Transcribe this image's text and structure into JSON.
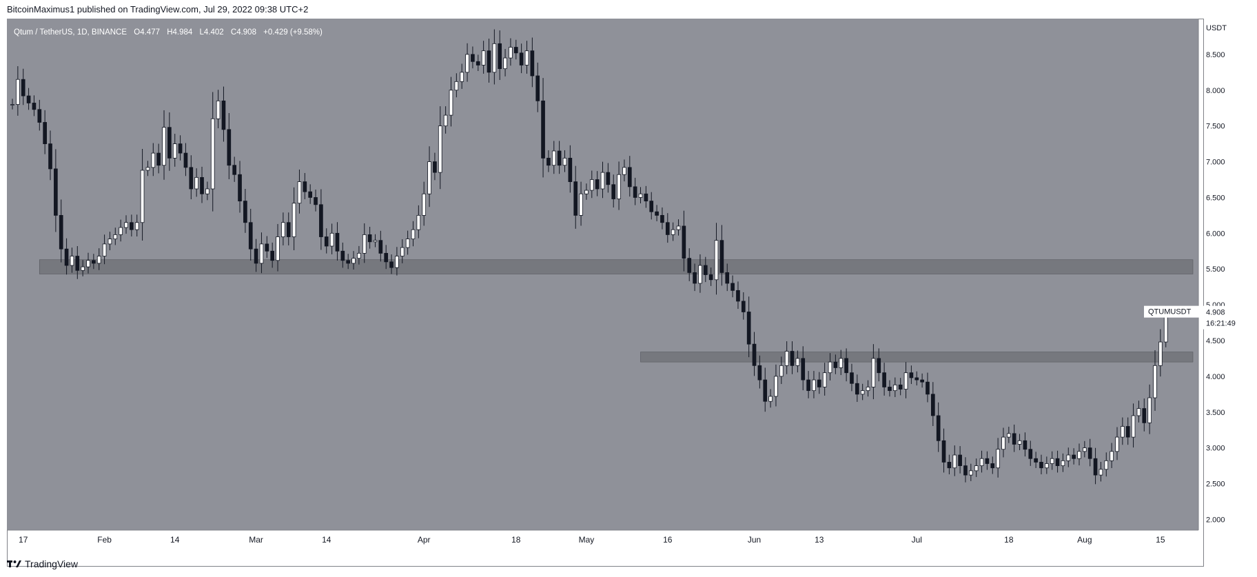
{
  "header": {
    "published": "BitcoinMaximus1 published on TradingView.com, Jul 29, 2022 09:38 UTC+2"
  },
  "legend": {
    "symbol": "Qtum / TetherUS, 1D, BINANCE",
    "o_label": "O",
    "o_value": "4.477",
    "h_label": "H",
    "h_value": "4.984",
    "l_label": "L",
    "l_value": "4.402",
    "c_label": "C",
    "c_value": "4.908",
    "change": "+0.429 (+9.58%)"
  },
  "price_label": {
    "symbol": "QTUMUSDT",
    "price": "4.908",
    "countdown": "16:21:49"
  },
  "footer": {
    "brand": "TradingView"
  },
  "colors": {
    "plot_bg": "#8f9199",
    "zone": "#6e7076",
    "up_candle": "#ffffff",
    "down_candle": "#131722",
    "text": "#131722"
  },
  "chart_data": {
    "type": "candlestick",
    "title": "Qtum / TetherUS, 1D, BINANCE",
    "y_axis_label": "USDT",
    "ylim": [
      1.85,
      9.0
    ],
    "y_ticks": [
      "2.000",
      "2.500",
      "3.000",
      "3.500",
      "4.000",
      "4.500",
      "5.000",
      "5.500",
      "6.000",
      "6.500",
      "7.000",
      "7.500",
      "8.000",
      "8.500"
    ],
    "x_range": [
      "2022-01-15",
      "2022-08-21"
    ],
    "x_ticks": [
      {
        "date": "2022-01-17",
        "label": "17"
      },
      {
        "date": "2022-02-01",
        "label": "Feb"
      },
      {
        "date": "2022-02-14",
        "label": "14"
      },
      {
        "date": "2022-03-01",
        "label": "Mar"
      },
      {
        "date": "2022-03-14",
        "label": "14"
      },
      {
        "date": "2022-04-01",
        "label": "Apr"
      },
      {
        "date": "2022-04-18",
        "label": "18"
      },
      {
        "date": "2022-05-01",
        "label": "May"
      },
      {
        "date": "2022-05-16",
        "label": "16"
      },
      {
        "date": "2022-06-01",
        "label": "Jun"
      },
      {
        "date": "2022-06-13",
        "label": "13"
      },
      {
        "date": "2022-07-01",
        "label": "Jul"
      },
      {
        "date": "2022-07-18",
        "label": "18"
      },
      {
        "date": "2022-08-01",
        "label": "Aug"
      },
      {
        "date": "2022-08-15",
        "label": "15"
      }
    ],
    "zones": [
      {
        "start": "2022-01-20",
        "end": "2022-08-21",
        "low": 5.43,
        "high": 5.63
      },
      {
        "start": "2022-05-11",
        "end": "2022-08-21",
        "low": 4.2,
        "high": 4.34
      }
    ],
    "closes": [
      [
        "2022-01-15",
        7.8
      ],
      [
        "2022-01-16",
        8.15
      ],
      [
        "2022-01-17",
        7.92
      ],
      [
        "2022-01-18",
        7.82
      ],
      [
        "2022-01-19",
        7.73
      ],
      [
        "2022-01-20",
        7.55
      ],
      [
        "2022-01-21",
        7.25
      ],
      [
        "2022-01-22",
        6.9
      ],
      [
        "2022-01-23",
        6.25
      ],
      [
        "2022-01-24",
        5.78
      ],
      [
        "2022-01-25",
        5.55
      ],
      [
        "2022-01-26",
        5.68
      ],
      [
        "2022-01-27",
        5.48
      ],
      [
        "2022-01-28",
        5.53
      ],
      [
        "2022-01-29",
        5.62
      ],
      [
        "2022-01-30",
        5.58
      ],
      [
        "2022-01-31",
        5.68
      ],
      [
        "2022-02-01",
        5.85
      ],
      [
        "2022-02-02",
        5.92
      ],
      [
        "2022-02-03",
        5.98
      ],
      [
        "2022-02-04",
        6.08
      ],
      [
        "2022-02-05",
        6.15
      ],
      [
        "2022-02-06",
        6.05
      ],
      [
        "2022-02-07",
        6.15
      ],
      [
        "2022-02-08",
        6.88
      ],
      [
        "2022-02-09",
        6.92
      ],
      [
        "2022-02-10",
        7.12
      ],
      [
        "2022-02-11",
        6.95
      ],
      [
        "2022-02-12",
        7.48
      ],
      [
        "2022-02-13",
        7.05
      ],
      [
        "2022-02-14",
        7.25
      ],
      [
        "2022-02-15",
        7.12
      ],
      [
        "2022-02-16",
        6.92
      ],
      [
        "2022-02-17",
        6.62
      ],
      [
        "2022-02-18",
        6.78
      ],
      [
        "2022-02-19",
        6.55
      ],
      [
        "2022-02-20",
        6.62
      ],
      [
        "2022-02-21",
        7.6
      ],
      [
        "2022-02-22",
        7.85
      ],
      [
        "2022-02-23",
        7.45
      ],
      [
        "2022-02-24",
        6.95
      ],
      [
        "2022-02-25",
        6.82
      ],
      [
        "2022-02-26",
        6.45
      ],
      [
        "2022-02-27",
        6.15
      ],
      [
        "2022-02-28",
        5.78
      ],
      [
        "2022-03-01",
        5.58
      ],
      [
        "2022-03-02",
        5.85
      ],
      [
        "2022-03-03",
        5.75
      ],
      [
        "2022-03-04",
        5.62
      ],
      [
        "2022-03-05",
        5.95
      ],
      [
        "2022-03-06",
        6.15
      ],
      [
        "2022-03-07",
        5.95
      ],
      [
        "2022-03-08",
        6.42
      ],
      [
        "2022-03-09",
        6.72
      ],
      [
        "2022-03-10",
        6.58
      ],
      [
        "2022-03-11",
        6.5
      ],
      [
        "2022-03-12",
        6.4
      ],
      [
        "2022-03-13",
        5.95
      ],
      [
        "2022-03-14",
        5.82
      ],
      [
        "2022-03-15",
        6.0
      ],
      [
        "2022-03-16",
        5.75
      ],
      [
        "2022-03-17",
        5.62
      ],
      [
        "2022-03-18",
        5.58
      ],
      [
        "2022-03-19",
        5.65
      ],
      [
        "2022-03-20",
        5.72
      ],
      [
        "2022-03-21",
        5.98
      ],
      [
        "2022-03-22",
        5.88
      ],
      [
        "2022-03-23",
        5.9
      ],
      [
        "2022-03-24",
        5.72
      ],
      [
        "2022-03-25",
        5.6
      ],
      [
        "2022-03-26",
        5.52
      ],
      [
        "2022-03-27",
        5.68
      ],
      [
        "2022-03-28",
        5.8
      ],
      [
        "2022-03-29",
        5.92
      ],
      [
        "2022-03-30",
        6.05
      ],
      [
        "2022-03-31",
        6.25
      ],
      [
        "2022-04-01",
        6.55
      ],
      [
        "2022-04-02",
        7.0
      ],
      [
        "2022-04-03",
        6.85
      ],
      [
        "2022-04-04",
        7.5
      ],
      [
        "2022-04-05",
        7.65
      ],
      [
        "2022-04-06",
        8.0
      ],
      [
        "2022-04-07",
        8.12
      ],
      [
        "2022-04-08",
        8.25
      ],
      [
        "2022-04-09",
        8.5
      ],
      [
        "2022-04-10",
        8.4
      ],
      [
        "2022-04-11",
        8.35
      ],
      [
        "2022-04-12",
        8.55
      ],
      [
        "2022-04-13",
        8.25
      ],
      [
        "2022-04-14",
        8.65
      ],
      [
        "2022-04-15",
        8.3
      ],
      [
        "2022-04-16",
        8.45
      ],
      [
        "2022-04-17",
        8.6
      ],
      [
        "2022-04-18",
        8.52
      ],
      [
        "2022-04-19",
        8.35
      ],
      [
        "2022-04-20",
        8.55
      ],
      [
        "2022-04-21",
        8.2
      ],
      [
        "2022-04-22",
        7.85
      ],
      [
        "2022-04-23",
        7.05
      ],
      [
        "2022-04-24",
        6.95
      ],
      [
        "2022-04-25",
        7.15
      ],
      [
        "2022-04-26",
        6.95
      ],
      [
        "2022-04-27",
        7.05
      ],
      [
        "2022-04-28",
        6.72
      ],
      [
        "2022-04-29",
        6.25
      ],
      [
        "2022-04-30",
        6.55
      ],
      [
        "2022-05-01",
        6.6
      ],
      [
        "2022-05-02",
        6.75
      ],
      [
        "2022-05-03",
        6.62
      ],
      [
        "2022-05-04",
        6.85
      ],
      [
        "2022-05-05",
        6.68
      ],
      [
        "2022-05-06",
        6.48
      ],
      [
        "2022-05-07",
        6.82
      ],
      [
        "2022-05-08",
        6.92
      ],
      [
        "2022-05-09",
        6.65
      ],
      [
        "2022-05-10",
        6.5
      ],
      [
        "2022-05-11",
        6.55
      ],
      [
        "2022-05-12",
        6.45
      ],
      [
        "2022-05-13",
        6.3
      ],
      [
        "2022-05-14",
        6.25
      ],
      [
        "2022-05-15",
        6.15
      ],
      [
        "2022-05-16",
        5.98
      ],
      [
        "2022-05-17",
        6.05
      ],
      [
        "2022-05-18",
        6.1
      ],
      [
        "2022-05-19",
        5.65
      ],
      [
        "2022-05-20",
        5.45
      ],
      [
        "2022-05-21",
        5.3
      ],
      [
        "2022-05-22",
        5.55
      ],
      [
        "2022-05-23",
        5.42
      ],
      [
        "2022-05-24",
        5.35
      ],
      [
        "2022-05-25",
        5.9
      ],
      [
        "2022-05-26",
        5.45
      ],
      [
        "2022-05-27",
        5.3
      ],
      [
        "2022-05-28",
        5.2
      ],
      [
        "2022-05-29",
        5.05
      ],
      [
        "2022-05-30",
        4.9
      ],
      [
        "2022-05-31",
        4.45
      ],
      [
        "2022-06-01",
        4.15
      ],
      [
        "2022-06-02",
        3.95
      ],
      [
        "2022-06-03",
        3.65
      ],
      [
        "2022-06-04",
        3.72
      ],
      [
        "2022-06-05",
        4.0
      ],
      [
        "2022-06-06",
        4.15
      ],
      [
        "2022-06-07",
        4.35
      ],
      [
        "2022-06-08",
        4.15
      ],
      [
        "2022-06-09",
        4.25
      ],
      [
        "2022-06-10",
        3.95
      ],
      [
        "2022-06-11",
        3.8
      ],
      [
        "2022-06-12",
        3.95
      ],
      [
        "2022-06-13",
        3.85
      ],
      [
        "2022-06-14",
        4.05
      ],
      [
        "2022-06-15",
        4.2
      ],
      [
        "2022-06-16",
        4.12
      ],
      [
        "2022-06-17",
        4.25
      ],
      [
        "2022-06-18",
        4.05
      ],
      [
        "2022-06-19",
        3.9
      ],
      [
        "2022-06-20",
        3.75
      ],
      [
        "2022-06-21",
        3.8
      ],
      [
        "2022-06-22",
        3.85
      ],
      [
        "2022-06-23",
        4.25
      ],
      [
        "2022-06-24",
        4.05
      ],
      [
        "2022-06-25",
        3.85
      ],
      [
        "2022-06-26",
        3.8
      ],
      [
        "2022-06-27",
        3.88
      ],
      [
        "2022-06-28",
        3.82
      ],
      [
        "2022-06-29",
        4.05
      ],
      [
        "2022-06-30",
        3.98
      ],
      [
        "2022-07-01",
        3.95
      ],
      [
        "2022-07-02",
        3.92
      ],
      [
        "2022-07-03",
        3.75
      ],
      [
        "2022-07-04",
        3.45
      ],
      [
        "2022-07-05",
        3.1
      ],
      [
        "2022-07-06",
        2.8
      ],
      [
        "2022-07-07",
        2.72
      ],
      [
        "2022-07-08",
        2.9
      ],
      [
        "2022-07-09",
        2.75
      ],
      [
        "2022-07-10",
        2.62
      ],
      [
        "2022-07-11",
        2.68
      ],
      [
        "2022-07-12",
        2.75
      ],
      [
        "2022-07-13",
        2.85
      ],
      [
        "2022-07-14",
        2.78
      ],
      [
        "2022-07-15",
        2.72
      ],
      [
        "2022-07-16",
        2.98
      ],
      [
        "2022-07-17",
        3.15
      ],
      [
        "2022-07-18",
        3.2
      ],
      [
        "2022-07-19",
        3.05
      ],
      [
        "2022-07-20",
        3.1
      ],
      [
        "2022-07-21",
        2.98
      ],
      [
        "2022-07-22",
        2.85
      ],
      [
        "2022-07-23",
        2.8
      ],
      [
        "2022-07-24",
        2.72
      ],
      [
        "2022-07-25",
        2.78
      ],
      [
        "2022-07-26",
        2.85
      ],
      [
        "2022-07-27",
        2.75
      ],
      [
        "2022-07-28",
        2.82
      ],
      [
        "2022-07-29",
        2.9
      ],
      [
        "2022-07-30",
        2.85
      ],
      [
        "2022-07-31",
        2.95
      ],
      [
        "2022-08-01",
        3.0
      ],
      [
        "2022-08-02",
        2.85
      ],
      [
        "2022-08-03",
        2.62
      ],
      [
        "2022-08-04",
        2.7
      ],
      [
        "2022-08-05",
        2.82
      ],
      [
        "2022-08-06",
        2.95
      ],
      [
        "2022-08-07",
        3.15
      ],
      [
        "2022-08-08",
        3.3
      ],
      [
        "2022-08-09",
        3.15
      ],
      [
        "2022-08-10",
        3.45
      ],
      [
        "2022-08-11",
        3.55
      ],
      [
        "2022-08-12",
        3.35
      ],
      [
        "2022-08-13",
        3.7
      ],
      [
        "2022-08-14",
        4.15
      ],
      [
        "2022-08-15",
        4.48
      ],
      [
        "2022-08-16",
        4.908
      ]
    ]
  }
}
